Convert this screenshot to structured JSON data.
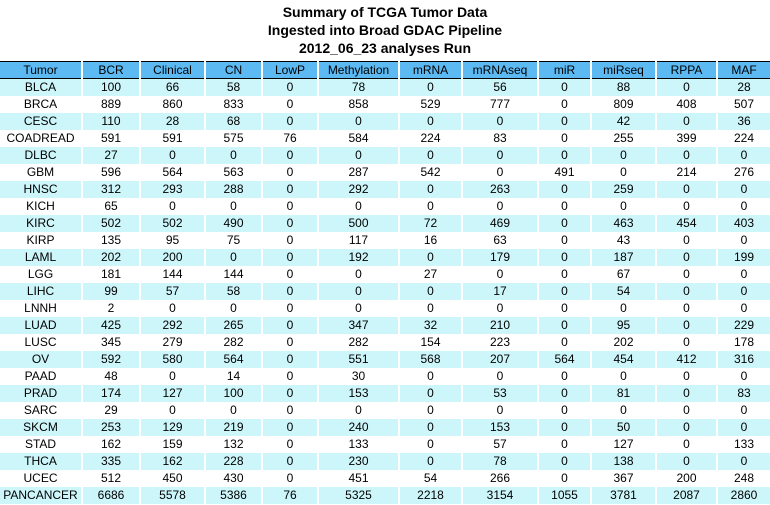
{
  "title": {
    "line1": "Summary of TCGA Tumor Data",
    "line2": "Ingested into Broad GDAC Pipeline",
    "line3": "2012_06_23 analyses Run"
  },
  "colors": {
    "header_bg": "#5CB9F2",
    "row_alt_bg": "#CDF6FB",
    "row_bg": "#FFFFFF",
    "separator": "#FFFFFF",
    "border": "#000000",
    "text": "#000000"
  },
  "chart_data": {
    "type": "table",
    "title": "Summary of TCGA Tumor Data",
    "subtitle": "Ingested into Broad GDAC Pipeline",
    "subtitle2": "2012_06_23 analyses Run",
    "columns": [
      "Tumor",
      "BCR",
      "Clinical",
      "CN",
      "LowP",
      "Methylation",
      "mRNA",
      "mRNAseq",
      "miR",
      "miRseq",
      "RPPA",
      "MAF"
    ],
    "rows": [
      [
        "BLCA",
        100,
        66,
        58,
        0,
        78,
        0,
        56,
        0,
        88,
        0,
        28
      ],
      [
        "BRCA",
        889,
        860,
        833,
        0,
        858,
        529,
        777,
        0,
        809,
        408,
        507
      ],
      [
        "CESC",
        110,
        28,
        68,
        0,
        0,
        0,
        0,
        0,
        42,
        0,
        36
      ],
      [
        "COADREAD",
        591,
        591,
        575,
        76,
        584,
        224,
        83,
        0,
        255,
        399,
        224
      ],
      [
        "DLBC",
        27,
        0,
        0,
        0,
        0,
        0,
        0,
        0,
        0,
        0,
        0
      ],
      [
        "GBM",
        596,
        564,
        563,
        0,
        287,
        542,
        0,
        491,
        0,
        214,
        276
      ],
      [
        "HNSC",
        312,
        293,
        288,
        0,
        292,
        0,
        263,
        0,
        259,
        0,
        0
      ],
      [
        "KICH",
        65,
        0,
        0,
        0,
        0,
        0,
        0,
        0,
        0,
        0,
        0
      ],
      [
        "KIRC",
        502,
        502,
        490,
        0,
        500,
        72,
        469,
        0,
        463,
        454,
        403
      ],
      [
        "KIRP",
        135,
        95,
        75,
        0,
        117,
        16,
        63,
        0,
        43,
        0,
        0
      ],
      [
        "LAML",
        202,
        200,
        0,
        0,
        192,
        0,
        179,
        0,
        187,
        0,
        199
      ],
      [
        "LGG",
        181,
        144,
        144,
        0,
        0,
        27,
        0,
        0,
        67,
        0,
        0
      ],
      [
        "LIHC",
        99,
        57,
        58,
        0,
        0,
        0,
        17,
        0,
        54,
        0,
        0
      ],
      [
        "LNNH",
        2,
        0,
        0,
        0,
        0,
        0,
        0,
        0,
        0,
        0,
        0
      ],
      [
        "LUAD",
        425,
        292,
        265,
        0,
        347,
        32,
        210,
        0,
        95,
        0,
        229
      ],
      [
        "LUSC",
        345,
        279,
        282,
        0,
        282,
        154,
        223,
        0,
        202,
        0,
        178
      ],
      [
        "OV",
        592,
        580,
        564,
        0,
        551,
        568,
        207,
        564,
        454,
        412,
        316
      ],
      [
        "PAAD",
        48,
        0,
        14,
        0,
        30,
        0,
        0,
        0,
        0,
        0,
        0
      ],
      [
        "PRAD",
        174,
        127,
        100,
        0,
        153,
        0,
        53,
        0,
        81,
        0,
        83
      ],
      [
        "SARC",
        29,
        0,
        0,
        0,
        0,
        0,
        0,
        0,
        0,
        0,
        0
      ],
      [
        "SKCM",
        253,
        129,
        219,
        0,
        240,
        0,
        153,
        0,
        50,
        0,
        0
      ],
      [
        "STAD",
        162,
        159,
        132,
        0,
        133,
        0,
        57,
        0,
        127,
        0,
        133
      ],
      [
        "THCA",
        335,
        162,
        228,
        0,
        230,
        0,
        78,
        0,
        138,
        0,
        0
      ],
      [
        "UCEC",
        512,
        450,
        430,
        0,
        451,
        54,
        266,
        0,
        367,
        200,
        248
      ],
      [
        "PANCANCER",
        6686,
        5578,
        5386,
        76,
        5325,
        2218,
        3154,
        1055,
        3781,
        2087,
        2860
      ]
    ]
  }
}
